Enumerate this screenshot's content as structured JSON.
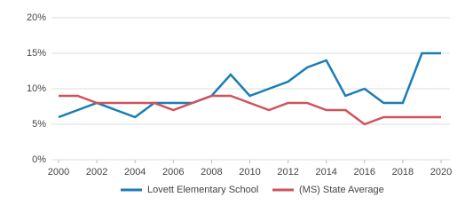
{
  "chart_data": {
    "type": "line",
    "x": [
      2000,
      2001,
      2002,
      2003,
      2004,
      2005,
      2006,
      2007,
      2008,
      2009,
      2010,
      2011,
      2012,
      2013,
      2014,
      2015,
      2016,
      2017,
      2018,
      2019,
      2020
    ],
    "series": [
      {
        "name": "Lovett Elementary School",
        "color": "#1a7db5",
        "values": [
          6,
          7,
          8,
          7,
          6,
          8,
          8,
          8,
          9,
          12,
          9,
          10,
          11,
          13,
          14,
          9,
          10,
          8,
          8,
          15,
          15
        ]
      },
      {
        "name": "(MS) State Average",
        "color": "#d0535b",
        "values": [
          9,
          9,
          8,
          8,
          8,
          8,
          7,
          8,
          9,
          9,
          8,
          7,
          8,
          8,
          7,
          7,
          5,
          6,
          6,
          6,
          6
        ]
      }
    ],
    "xlim": [
      2000,
      2020
    ],
    "xticks": [
      2000,
      2002,
      2004,
      2006,
      2008,
      2010,
      2012,
      2014,
      2016,
      2018,
      2020
    ],
    "ylim": [
      0,
      20
    ],
    "yticks": [
      {
        "value": 0,
        "label": "0%"
      },
      {
        "value": 5,
        "label": "5%"
      },
      {
        "value": 10,
        "label": "10%"
      },
      {
        "value": 15,
        "label": "15%"
      },
      {
        "value": 20,
        "label": "20%"
      }
    ],
    "grid": true
  }
}
